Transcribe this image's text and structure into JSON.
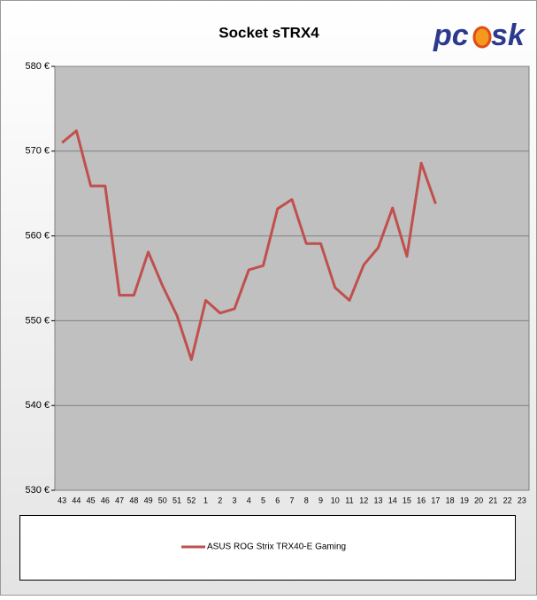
{
  "chart_data": {
    "type": "line",
    "title": "Socket sTRX4",
    "logo": [
      "pc",
      "sk"
    ],
    "categories": [
      "43",
      "44",
      "45",
      "46",
      "47",
      "48",
      "49",
      "50",
      "51",
      "52",
      "1",
      "2",
      "3",
      "4",
      "5",
      "6",
      "7",
      "8",
      "9",
      "10",
      "11",
      "12",
      "13",
      "14",
      "15",
      "16",
      "17",
      "18",
      "19",
      "20",
      "21",
      "22",
      "23"
    ],
    "series": [
      {
        "name": "ASUS ROG Strix TRX40-E Gaming",
        "color": "#c0504d",
        "values": [
          571.0,
          572.4,
          565.9,
          565.9,
          553.0,
          553.0,
          558.1,
          554.1,
          550.6,
          545.4,
          552.4,
          550.9,
          551.4,
          556.0,
          556.5,
          563.2,
          564.3,
          559.1,
          559.1,
          553.9,
          552.4,
          556.6,
          558.6,
          563.3,
          557.6,
          568.6,
          563.8,
          null,
          null,
          null,
          null,
          null,
          null
        ]
      }
    ],
    "ylim": [
      530,
      580
    ],
    "yticks": [
      {
        "value": 530,
        "label": "530 €"
      },
      {
        "value": 540,
        "label": "540 €"
      },
      {
        "value": 550,
        "label": "550 €"
      },
      {
        "value": 560,
        "label": "560 €"
      },
      {
        "value": 570,
        "label": "570 €"
      },
      {
        "value": 580,
        "label": "580 €"
      }
    ],
    "grid": true
  }
}
